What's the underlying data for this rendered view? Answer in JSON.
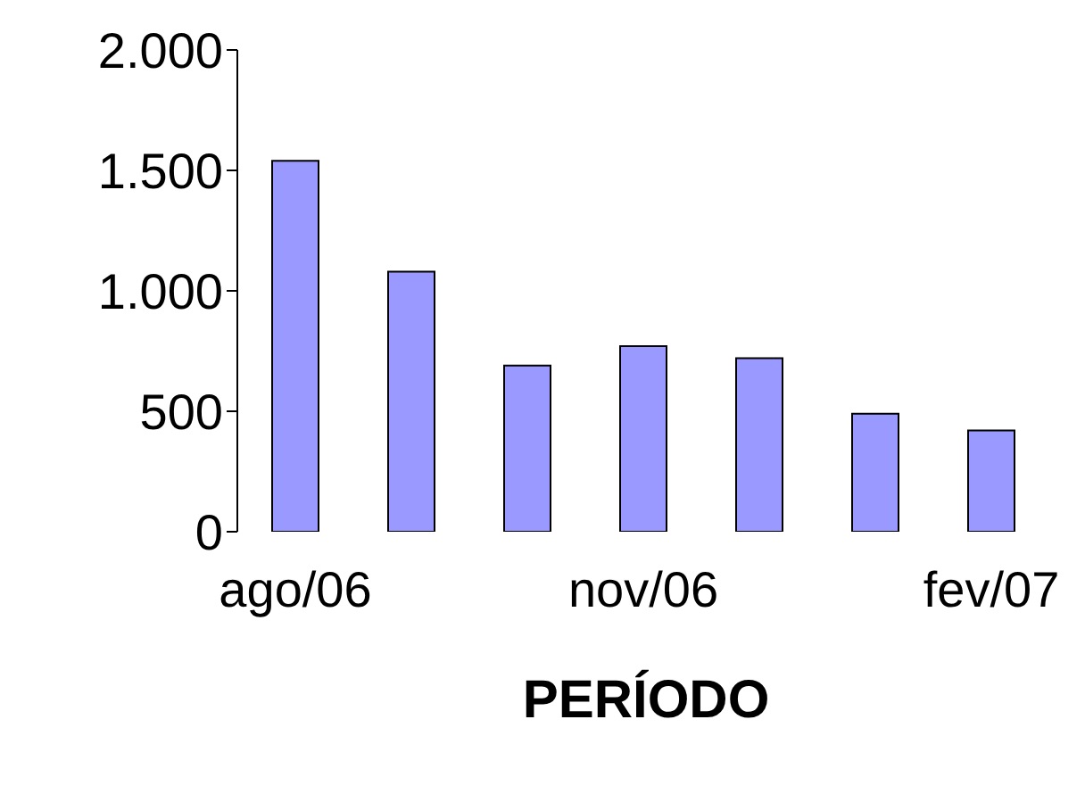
{
  "chart_data": {
    "type": "bar",
    "xlabel": "PERÍODO",
    "categories": [
      "ago/06",
      null,
      null,
      "nov/06",
      null,
      null,
      "fev/07"
    ],
    "values": [
      1540,
      1080,
      690,
      770,
      720,
      490,
      420
    ],
    "color": "#9999ff",
    "ylim": [
      0,
      2000
    ],
    "yticks": [
      {
        "value": 0,
        "label": "0"
      },
      {
        "value": 500,
        "label": "500"
      },
      {
        "value": 1000,
        "label": "1.000"
      },
      {
        "value": 1500,
        "label": "1.500"
      },
      {
        "value": 2000,
        "label": "2.000"
      }
    ],
    "grid": false,
    "legend": false
  }
}
